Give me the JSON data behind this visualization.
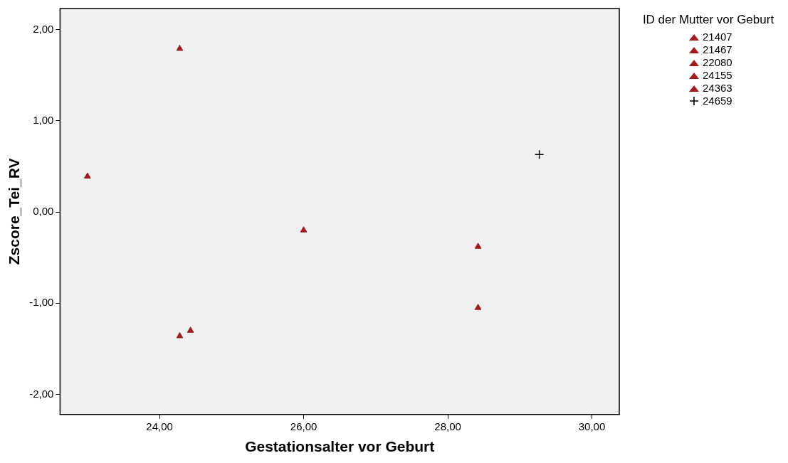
{
  "chart_data": {
    "type": "scatter",
    "xlabel": "Gestationsalter vor Geburt",
    "ylabel": "Zscore_Tei_RV",
    "legend_title": "ID der Mutter vor Geburt",
    "xlim": [
      22.62,
      30.38
    ],
    "ylim": [
      -2.22,
      2.23
    ],
    "xticks": [
      {
        "value": 24,
        "label": "24,00"
      },
      {
        "value": 26,
        "label": "26,00"
      },
      {
        "value": 28,
        "label": "28,00"
      },
      {
        "value": 30,
        "label": "30,00"
      }
    ],
    "yticks": [
      {
        "value": -2,
        "label": "-2,00"
      },
      {
        "value": -1,
        "label": "-1,00"
      },
      {
        "value": 0,
        "label": "0,00"
      },
      {
        "value": 1,
        "label": "1,00"
      },
      {
        "value": 2,
        "label": "2,00"
      }
    ],
    "grid": false,
    "legend": "top right",
    "series": [
      {
        "name": "21407",
        "color": "#a11b1f",
        "marker": "triangle",
        "x": [
          23.0
        ],
        "values": [
          0.39
        ]
      },
      {
        "name": "21467",
        "color": "#a11b1f",
        "marker": "triangle",
        "x": [
          24.28,
          24.28
        ],
        "values": [
          1.79,
          -1.36
        ]
      },
      {
        "name": "22080",
        "color": "#a11b1f",
        "marker": "triangle",
        "x": [
          24.43
        ],
        "values": [
          -1.3
        ]
      },
      {
        "name": "24155",
        "color": "#a11b1f",
        "marker": "triangle",
        "x": [
          26.0
        ],
        "values": [
          -0.2
        ]
      },
      {
        "name": "24363",
        "color": "#a11b1f",
        "marker": "triangle",
        "x": [
          28.42,
          28.42
        ],
        "values": [
          -0.38,
          -1.05
        ]
      },
      {
        "name": "24659",
        "color": "#000000",
        "marker": "cross",
        "x": [
          29.27
        ],
        "values": [
          0.63
        ]
      }
    ]
  }
}
